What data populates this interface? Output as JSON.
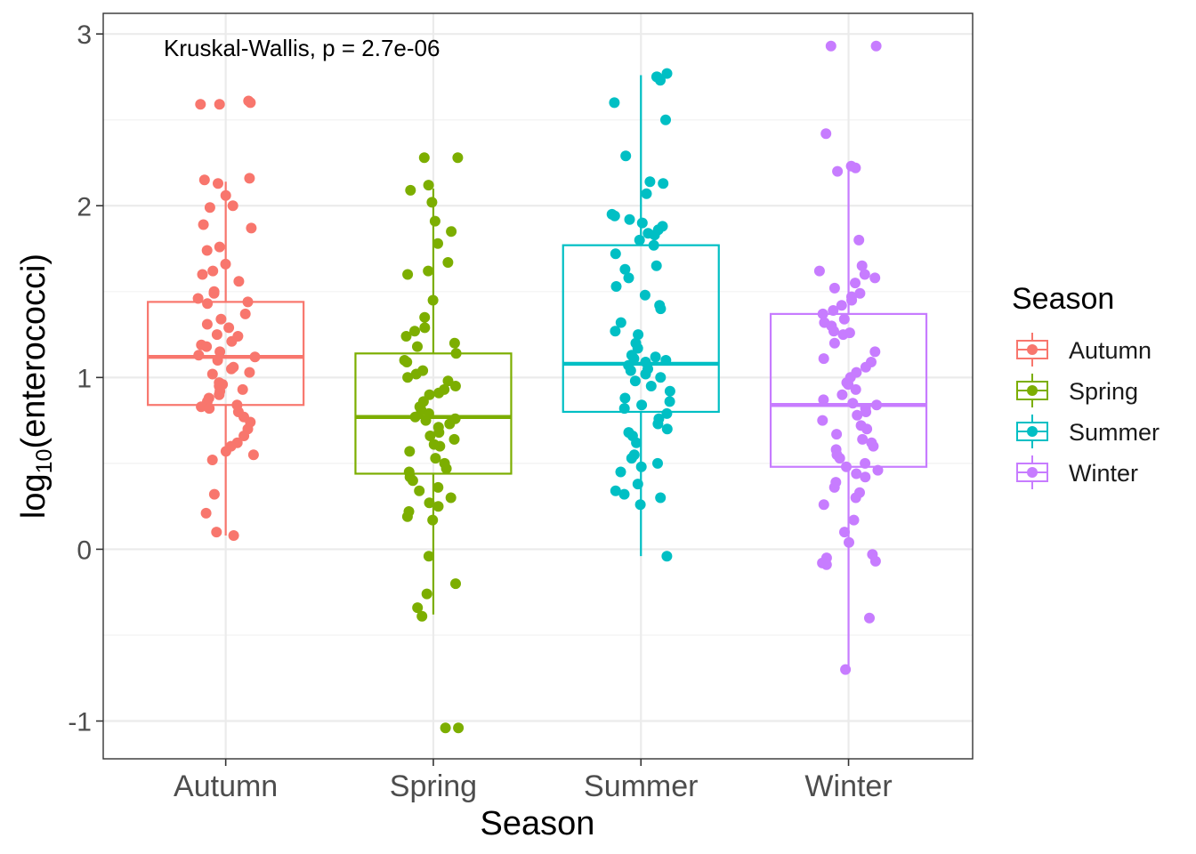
{
  "chart_data": {
    "type": "boxplot",
    "annotation": "Kruskal-Wallis, p = 2.7e-06",
    "xlabel": "Season",
    "ylabel": {
      "base": "log",
      "subscript": "10",
      "rest": "(enterococci)"
    },
    "ylim": [
      -1.22,
      3.12
    ],
    "yticks": [
      -1,
      0,
      1,
      2,
      3
    ],
    "ytick_labels": [
      "-1",
      "0",
      "1",
      "2",
      "3"
    ],
    "categories": [
      "Autumn",
      "Spring",
      "Summer",
      "Winter"
    ],
    "legend": {
      "title": "Season",
      "position": "right",
      "entries": [
        "Autumn",
        "Spring",
        "Summer",
        "Winter"
      ]
    },
    "grid": true,
    "series": [
      {
        "name": "Autumn",
        "color": "#F8766D",
        "box": {
          "whisker_low": 0.08,
          "q1": 0.84,
          "median": 1.12,
          "q3": 1.44,
          "whisker_high": 2.14
        },
        "points": [
          2.61,
          2.6,
          2.59,
          2.59,
          2.16,
          2.15,
          2.13,
          2.06,
          2.0,
          1.99,
          1.89,
          1.87,
          1.76,
          1.74,
          1.66,
          1.62,
          1.6,
          1.56,
          1.5,
          1.49,
          1.46,
          1.44,
          1.43,
          1.37,
          1.34,
          1.31,
          1.29,
          1.25,
          1.24,
          1.21,
          1.19,
          1.18,
          1.15,
          1.13,
          1.12,
          1.1,
          1.06,
          1.05,
          1.03,
          1.02,
          0.97,
          0.96,
          0.95,
          0.93,
          0.92,
          0.9,
          0.88,
          0.86,
          0.84,
          0.83,
          0.82,
          0.8,
          0.77,
          0.74,
          0.7,
          0.66,
          0.62,
          0.6,
          0.57,
          0.55,
          0.52,
          0.32,
          0.21,
          0.1,
          0.08
        ]
      },
      {
        "name": "Spring",
        "color": "#7CAE00",
        "box": {
          "whisker_low": -0.38,
          "q1": 0.44,
          "median": 0.77,
          "q3": 1.14,
          "whisker_high": 2.1
        },
        "points": [
          2.28,
          2.28,
          2.12,
          2.09,
          2.02,
          1.91,
          1.85,
          1.78,
          1.67,
          1.62,
          1.6,
          1.45,
          1.35,
          1.29,
          1.27,
          1.24,
          1.2,
          1.18,
          1.14,
          1.1,
          1.09,
          1.04,
          1.02,
          1.0,
          0.98,
          0.95,
          0.93,
          0.91,
          0.9,
          0.86,
          0.83,
          0.81,
          0.79,
          0.77,
          0.76,
          0.75,
          0.73,
          0.71,
          0.68,
          0.66,
          0.64,
          0.61,
          0.6,
          0.57,
          0.53,
          0.5,
          0.47,
          0.45,
          0.42,
          0.4,
          0.36,
          0.34,
          0.3,
          0.27,
          0.25,
          0.22,
          0.19,
          0.17,
          -0.04,
          -0.2,
          -0.26,
          -0.34,
          -0.39,
          -1.04,
          -1.04
        ]
      },
      {
        "name": "Summer",
        "color": "#00BFC4",
        "box": {
          "whisker_low": -0.04,
          "q1": 0.8,
          "median": 1.08,
          "q3": 1.77,
          "whisker_high": 2.76
        },
        "points": [
          2.77,
          2.75,
          2.75,
          2.73,
          2.6,
          2.5,
          2.29,
          2.14,
          2.13,
          2.07,
          1.95,
          1.94,
          1.92,
          1.9,
          1.88,
          1.86,
          1.84,
          1.83,
          1.8,
          1.77,
          1.72,
          1.65,
          1.63,
          1.58,
          1.53,
          1.48,
          1.42,
          1.4,
          1.32,
          1.27,
          1.25,
          1.2,
          1.17,
          1.13,
          1.12,
          1.11,
          1.1,
          1.09,
          1.07,
          1.05,
          1.04,
          1.02,
          1.0,
          0.98,
          0.95,
          0.92,
          0.88,
          0.86,
          0.84,
          0.82,
          0.79,
          0.76,
          0.73,
          0.7,
          0.68,
          0.66,
          0.62,
          0.55,
          0.53,
          0.5,
          0.48,
          0.45,
          0.38,
          0.34,
          0.32,
          0.3,
          0.26,
          -0.04
        ]
      },
      {
        "name": "Winter",
        "color": "#C77CFF",
        "box": {
          "whisker_low": -0.7,
          "q1": 0.48,
          "median": 0.84,
          "q3": 1.37,
          "whisker_high": 2.24
        },
        "points": [
          2.93,
          2.93,
          2.42,
          2.23,
          2.22,
          2.2,
          1.8,
          1.65,
          1.62,
          1.6,
          1.58,
          1.55,
          1.52,
          1.49,
          1.47,
          1.45,
          1.42,
          1.39,
          1.37,
          1.34,
          1.32,
          1.3,
          1.27,
          1.26,
          1.25,
          1.2,
          1.15,
          1.11,
          1.09,
          1.06,
          1.03,
          1.0,
          0.97,
          0.96,
          0.93,
          0.9,
          0.87,
          0.85,
          0.84,
          0.82,
          0.8,
          0.78,
          0.75,
          0.72,
          0.7,
          0.67,
          0.64,
          0.62,
          0.6,
          0.58,
          0.55,
          0.53,
          0.5,
          0.48,
          0.46,
          0.44,
          0.42,
          0.39,
          0.36,
          0.33,
          0.3,
          0.26,
          0.17,
          0.1,
          0.04,
          -0.03,
          -0.05,
          -0.07,
          -0.08,
          -0.09,
          -0.4,
          -0.7
        ]
      }
    ]
  }
}
